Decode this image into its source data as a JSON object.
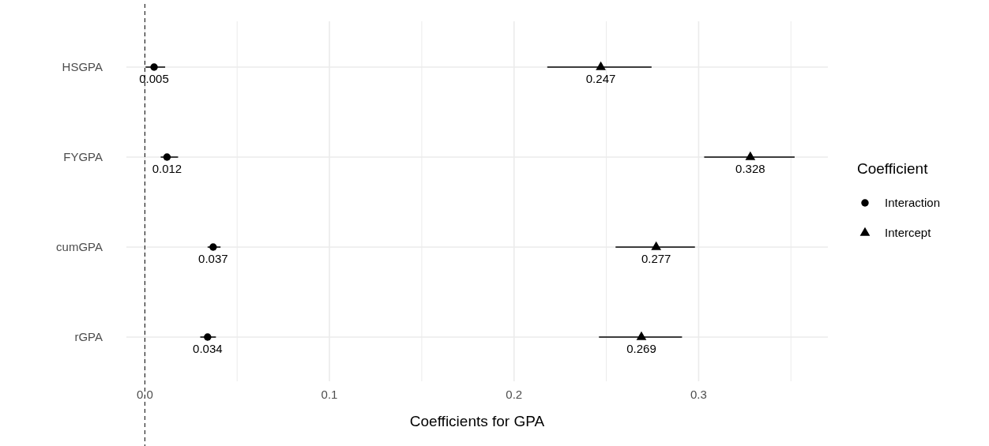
{
  "chart_data": {
    "type": "scatter",
    "orientation": "horizontal",
    "xlabel": "Coefficients for GPA",
    "legend_title": "Coefficient",
    "legend": "right",
    "grid": true,
    "data_labels": true,
    "categories": [
      "HSGPA",
      "FYGPA",
      "cumGPA",
      "rGPA"
    ],
    "xlim": [
      -0.01,
      0.37
    ],
    "xticks": [
      {
        "value": 0,
        "label": "0.0"
      },
      {
        "value": 0.05,
        "label": null
      },
      0.1,
      {
        "value": 0.15,
        "label": null
      },
      0.2,
      {
        "value": 0.25,
        "label": null
      },
      0.3,
      {
        "value": 0.35,
        "label": null
      }
    ],
    "ref_lines": [
      {
        "axis": "x",
        "value": 0,
        "line_style": "dashed",
        "color": "#000000"
      }
    ],
    "series": [
      {
        "name": "Interaction",
        "color": "#000000",
        "marker": "circle",
        "values": [
          0.005,
          0.012,
          0.037,
          0.034
        ],
        "errors": [
          [
            0.0004,
            0.011
          ],
          [
            0.0086,
            0.018
          ],
          [
            0.034,
            0.041
          ],
          [
            0.03,
            0.0385
          ]
        ]
      },
      {
        "name": "Intercept",
        "color": "#000000",
        "marker": "triangle",
        "values": [
          0.247,
          0.328,
          0.277,
          0.269
        ],
        "errors": [
          [
            0.218,
            0.2745
          ],
          [
            0.303,
            0.352
          ],
          [
            0.255,
            0.298
          ],
          [
            0.246,
            0.291
          ]
        ]
      }
    ]
  }
}
